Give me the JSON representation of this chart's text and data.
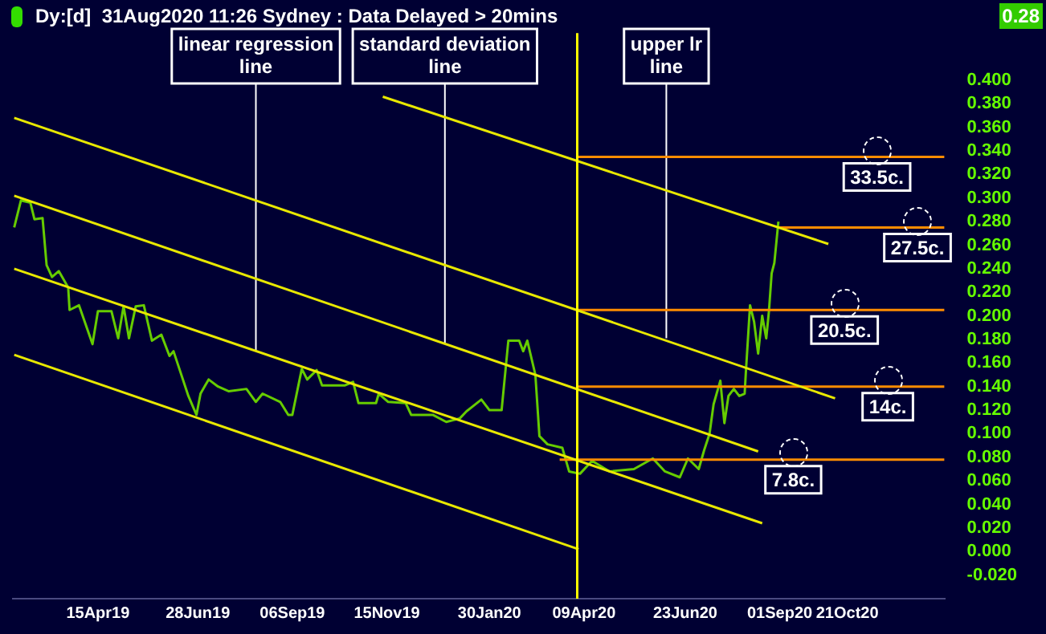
{
  "chart_data": {
    "type": "line",
    "title": "Dy:[d]  31Aug2020 11:26 Sydney : Data Delayed > 20mins",
    "xlim": [
      "2019-02-11",
      "2021-01-01"
    ],
    "xticks": [
      {
        "value": "2019-04-15",
        "label": "15Apr19"
      },
      {
        "value": "2019-06-28",
        "label": "28Jun19"
      },
      {
        "value": "2019-09-06",
        "label": "06Sep19"
      },
      {
        "value": "2019-11-15",
        "label": "15Nov19"
      },
      {
        "value": "2020-01-30",
        "label": "30Jan20"
      },
      {
        "value": "2020-04-09",
        "label": "09Apr20"
      },
      {
        "value": "2020-06-23",
        "label": "23Jun20"
      },
      {
        "value": "2020-09-01",
        "label": "01Sep20"
      },
      {
        "value": "2020-10-21",
        "label": "21Oct20"
      }
    ],
    "ylim": [
      -0.04,
      0.44
    ],
    "yticks": [
      {
        "value": 0.4,
        "label": "0.400"
      },
      {
        "value": 0.38,
        "label": "0.380"
      },
      {
        "value": 0.36,
        "label": "0.360"
      },
      {
        "value": 0.34,
        "label": "0.340"
      },
      {
        "value": 0.32,
        "label": "0.320"
      },
      {
        "value": 0.3,
        "label": "0.300"
      },
      {
        "value": 0.28,
        "label": "0.280"
      },
      {
        "value": 0.26,
        "label": "0.260"
      },
      {
        "value": 0.24,
        "label": "0.240"
      },
      {
        "value": 0.22,
        "label": "0.220"
      },
      {
        "value": 0.2,
        "label": "0.200"
      },
      {
        "value": 0.18,
        "label": "0.180"
      },
      {
        "value": 0.16,
        "label": "0.160"
      },
      {
        "value": 0.14,
        "label": "0.140"
      },
      {
        "value": 0.12,
        "label": "0.120"
      },
      {
        "value": 0.1,
        "label": "0.100"
      },
      {
        "value": 0.08,
        "label": "0.080"
      },
      {
        "value": 0.06,
        "label": "0.060"
      },
      {
        "value": 0.04,
        "label": "0.040"
      },
      {
        "value": 0.02,
        "label": "0.020"
      },
      {
        "value": 0,
        "label": "0.000"
      },
      {
        "value": -0.02,
        "label": "-0.020"
      }
    ],
    "grid": false,
    "legend": false,
    "marker": "none",
    "ref_lines": [
      {
        "axis": "x",
        "value": "2020-04-04",
        "color": "#ffff00"
      }
    ],
    "annotations": [
      {
        "text": "linear regression line",
        "x": "2019-08-10",
        "y": 0.171
      },
      {
        "text": "standard deviation line",
        "x": "2019-12-28",
        "y": 0.177
      },
      {
        "text": "upper lr line",
        "x": "2020-06-09",
        "y": 0.181
      },
      {
        "text": "33.5c.",
        "x": "2020-11-12",
        "y": 0.335
      },
      {
        "text": "27.5c.",
        "x": "2020-12-12",
        "y": 0.275
      },
      {
        "text": "20.5c.",
        "x": "2020-10-19",
        "y": 0.205
      },
      {
        "text": "14c.",
        "x": "2020-11-20",
        "y": 0.14
      },
      {
        "text": "7.8c.",
        "x": "2020-09-11",
        "y": 0.078
      },
      "0.28"
    ],
    "series": [
      {
        "color": "#e8e800",
        "x": [
          "2019-11-12",
          "2020-10-07"
        ],
        "values": [
          0.386,
          0.261
        ]
      },
      {
        "color": "#e8e800",
        "x": [
          "2019-02-12",
          "2020-10-12"
        ],
        "values": [
          0.368,
          0.13
        ]
      },
      {
        "color": "#e8e800",
        "x": [
          "2019-02-12",
          "2020-08-16"
        ],
        "values": [
          0.302,
          0.085
        ]
      },
      {
        "color": "#e8e800",
        "x": [
          "2019-02-12",
          "2020-08-19"
        ],
        "values": [
          0.24,
          0.024
        ]
      },
      {
        "color": "#e8e800",
        "x": [
          "2019-02-12",
          "2020-04-05"
        ],
        "values": [
          0.167,
          0.002
        ]
      },
      {
        "color": "#ff8c00",
        "x": [
          "2020-04-04",
          "2021-01-01"
        ],
        "values": [
          0.335,
          0.335
        ]
      },
      {
        "color": "#ff8c00",
        "x": [
          "2020-08-31",
          "2021-01-01"
        ],
        "values": [
          0.275,
          0.275
        ]
      },
      {
        "color": "#ff8c00",
        "x": [
          "2020-04-04",
          "2021-01-01"
        ],
        "values": [
          0.205,
          0.205
        ]
      },
      {
        "color": "#ff8c00",
        "x": [
          "2020-04-04",
          "2021-01-01"
        ],
        "values": [
          0.14,
          0.14
        ]
      },
      {
        "color": "#ff8c00",
        "x": [
          "2020-03-22",
          "2021-01-01"
        ],
        "values": [
          0.078,
          0.078
        ]
      },
      {
        "color": "#66cc00",
        "x": [
          "2019-02-12",
          "2019-02-17",
          "2019-02-24",
          "2019-02-27",
          "2019-03-05",
          "2019-03-08",
          "2019-03-12",
          "2019-03-17",
          "2019-03-24",
          "2019-03-25",
          "2019-04-01",
          "2019-04-11",
          "2019-04-15",
          "2019-04-25",
          "2019-04-30",
          "2019-05-04",
          "2019-05-08",
          "2019-05-13",
          "2019-05-19",
          "2019-05-25",
          "2019-06-01",
          "2019-06-07",
          "2019-06-10",
          "2019-06-21",
          "2019-06-27",
          "2019-06-30",
          "2019-07-06",
          "2019-07-13",
          "2019-07-21",
          "2019-08-03",
          "2019-08-10",
          "2019-08-15",
          "2019-08-28",
          "2019-09-03",
          "2019-09-06",
          "2019-09-13",
          "2019-09-17",
          "2019-09-24",
          "2019-09-28",
          "2019-10-15",
          "2019-10-21",
          "2019-10-25",
          "2019-11-07",
          "2019-11-09",
          "2019-11-16",
          "2019-11-29",
          "2019-12-03",
          "2019-12-19",
          "2019-12-29",
          "2020-01-08",
          "2020-01-13",
          "2020-01-24",
          "2020-01-30",
          "2020-02-08",
          "2020-02-13",
          "2020-02-21",
          "2020-02-24",
          "2020-02-27",
          "2020-03-04",
          "2020-03-07",
          "2020-03-13",
          "2020-03-24",
          "2020-03-29",
          "2020-04-06",
          "2020-04-15",
          "2020-04-28",
          "2020-05-16",
          "2020-05-30",
          "2020-06-08",
          "2020-06-19",
          "2020-06-25",
          "2020-07-03",
          "2020-07-07",
          "2020-07-11",
          "2020-07-14",
          "2020-07-19",
          "2020-07-22",
          "2020-07-25",
          "2020-07-29",
          "2020-08-02",
          "2020-08-06",
          "2020-08-07",
          "2020-08-10",
          "2020-08-13",
          "2020-08-16",
          "2020-08-19",
          "2020-08-22",
          "2020-08-24",
          "2020-08-26",
          "2020-08-28",
          "2020-08-31"
        ],
        "values": [
          0.275,
          0.298,
          0.296,
          0.282,
          0.283,
          0.243,
          0.233,
          0.238,
          0.224,
          0.205,
          0.209,
          0.176,
          0.204,
          0.204,
          0.181,
          0.208,
          0.181,
          0.208,
          0.209,
          0.179,
          0.184,
          0.166,
          0.17,
          0.132,
          0.116,
          0.134,
          0.146,
          0.14,
          0.136,
          0.138,
          0.127,
          0.134,
          0.127,
          0.116,
          0.116,
          0.155,
          0.146,
          0.154,
          0.141,
          0.141,
          0.144,
          0.126,
          0.126,
          0.134,
          0.127,
          0.126,
          0.116,
          0.116,
          0.11,
          0.113,
          0.119,
          0.129,
          0.12,
          0.12,
          0.179,
          0.179,
          0.17,
          0.179,
          0.15,
          0.098,
          0.091,
          0.088,
          0.068,
          0.066,
          0.077,
          0.068,
          0.07,
          0.079,
          0.068,
          0.063,
          0.079,
          0.07,
          0.086,
          0.1,
          0.125,
          0.145,
          0.109,
          0.132,
          0.138,
          0.132,
          0.134,
          0.154,
          0.209,
          0.195,
          0.168,
          0.2,
          0.181,
          0.204,
          0.236,
          0.245,
          0.28
        ]
      }
    ]
  }
}
